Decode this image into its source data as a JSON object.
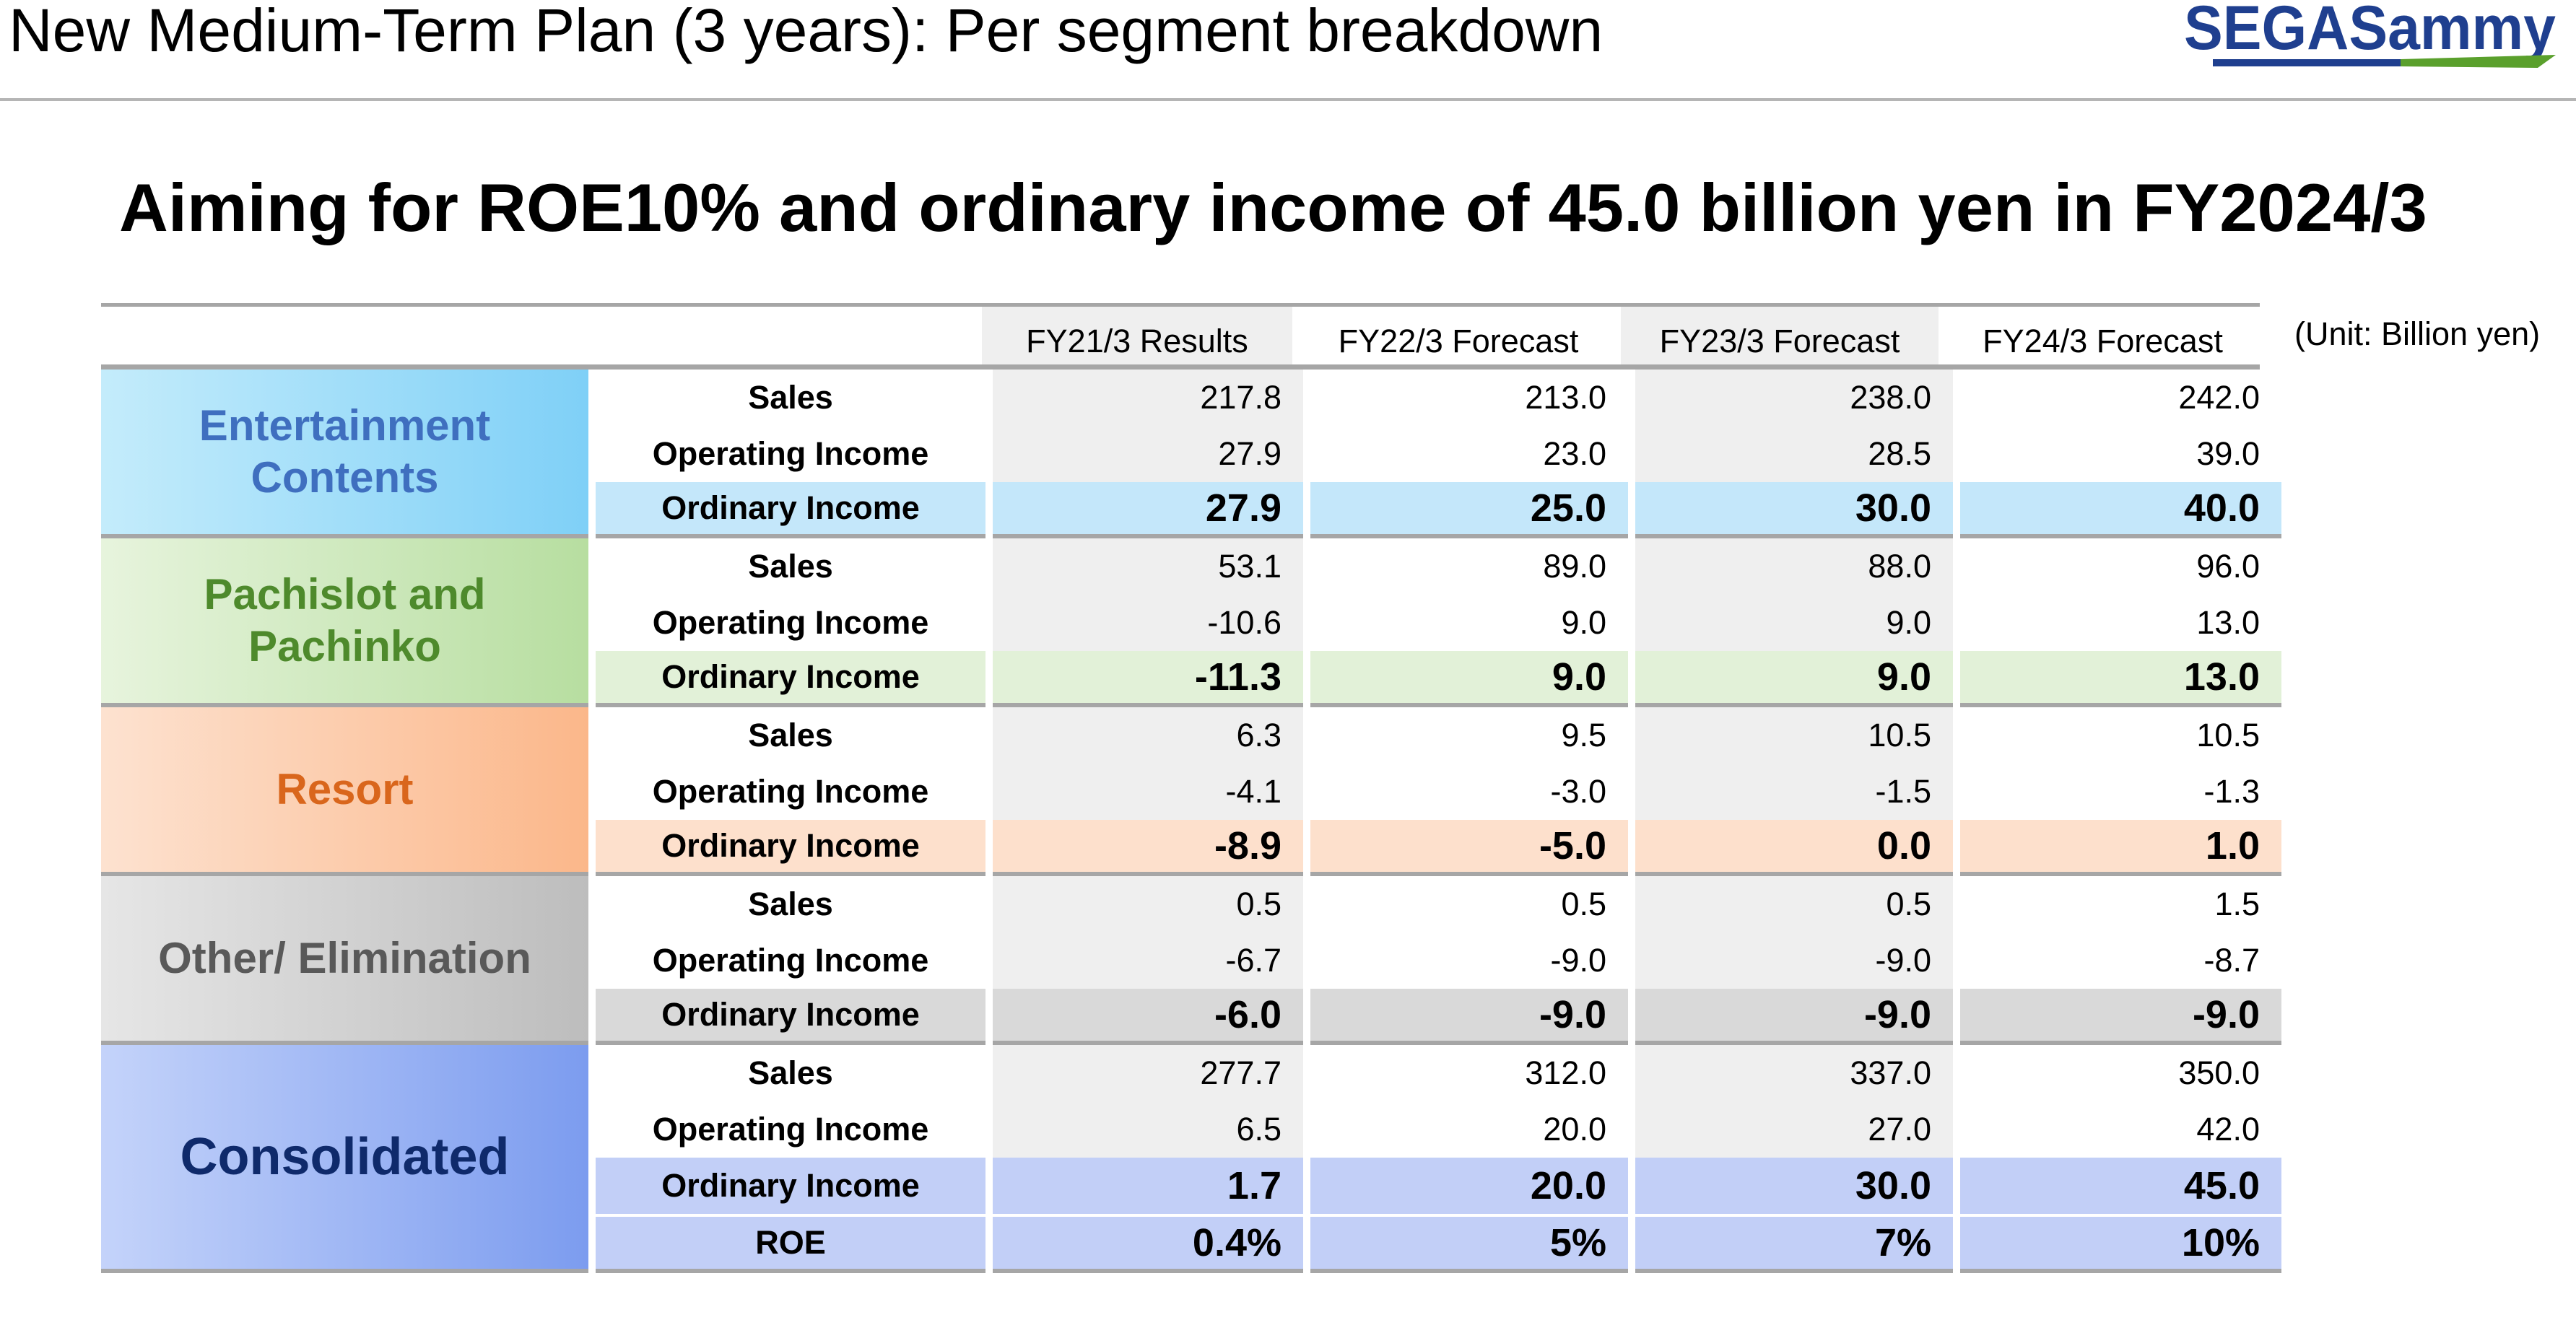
{
  "header": {
    "title": "New Medium-Term Plan (3 years): Per segment breakdown",
    "logo_text": "SEGASammy",
    "logo_color_blue": "#1f3f8f",
    "logo_color_green": "#5aa02c"
  },
  "headline": "Aiming for ROE10% and ordinary income of 45.0 billion yen in FY2024/3",
  "unit_note": "(Unit: Billion yen)",
  "table": {
    "columns": [
      "FY21/3 Results",
      "FY22/3 Forecast",
      "FY23/3 Forecast",
      "FY24/3 Forecast"
    ],
    "segments": [
      {
        "name_line1": "Entertainment",
        "name_line2": "Contents",
        "color": "#3f6fbf",
        "gradient": [
          "#c4ecfb",
          "#7fd0f7"
        ],
        "highlight": "#c4e7fa",
        "rows": [
          {
            "label": "Sales",
            "values": [
              "217.8",
              "213.0",
              "238.0",
              "242.0"
            ]
          },
          {
            "label": "Operating Income",
            "values": [
              "27.9",
              "23.0",
              "28.5",
              "39.0"
            ]
          },
          {
            "label": "Ordinary Income",
            "values": [
              "27.9",
              "25.0",
              "30.0",
              "40.0"
            ]
          }
        ]
      },
      {
        "name_line1": "Pachislot and",
        "name_line2": "Pachinko",
        "color": "#4e8a2c",
        "gradient": [
          "#e7f4dd",
          "#b7dea0"
        ],
        "highlight": "#e2f1d8",
        "rows": [
          {
            "label": "Sales",
            "values": [
              "53.1",
              "89.0",
              "88.0",
              "96.0"
            ]
          },
          {
            "label": "Operating Income",
            "values": [
              "-10.6",
              "9.0",
              "9.0",
              "13.0"
            ]
          },
          {
            "label": "Ordinary Income",
            "values": [
              "-11.3",
              "9.0",
              "9.0",
              "13.0"
            ]
          }
        ]
      },
      {
        "name_line1": "Resort",
        "name_line2": "",
        "color": "#d9661c",
        "gradient": [
          "#fde2d0",
          "#fbb78a"
        ],
        "highlight": "#fde0cc",
        "rows": [
          {
            "label": "Sales",
            "values": [
              "6.3",
              "9.5",
              "10.5",
              "10.5"
            ]
          },
          {
            "label": "Operating Income",
            "values": [
              "-4.1",
              "-3.0",
              "-1.5",
              "-1.3"
            ]
          },
          {
            "label": "Ordinary Income",
            "values": [
              "-8.9",
              "-5.0",
              "0.0",
              "1.0"
            ]
          }
        ]
      },
      {
        "name_line1": "Other/ Elimination",
        "name_line2": "",
        "color": "#595959",
        "gradient": [
          "#e6e6e6",
          "#bdbdbd"
        ],
        "highlight": "#d9d9d9",
        "rows": [
          {
            "label": "Sales",
            "values": [
              "0.5",
              "0.5",
              "0.5",
              "1.5"
            ]
          },
          {
            "label": "Operating Income",
            "values": [
              "-6.7",
              "-9.0",
              "-9.0",
              "-8.7"
            ]
          },
          {
            "label": "Ordinary Income",
            "values": [
              "-6.0",
              "-9.0",
              "-9.0",
              "-9.0"
            ]
          }
        ]
      },
      {
        "name_line1": "Consolidated",
        "name_line2": "",
        "color": "#0f2a6b",
        "gradient": [
          "#c4d3fa",
          "#7c9cef"
        ],
        "highlight": "#c2cff7",
        "rows": [
          {
            "label": "Sales",
            "values": [
              "277.7",
              "312.0",
              "337.0",
              "350.0"
            ]
          },
          {
            "label": "Operating Income",
            "values": [
              "6.5",
              "20.0",
              "27.0",
              "42.0"
            ]
          },
          {
            "label": "Ordinary Income",
            "values": [
              "1.7",
              "20.0",
              "30.0",
              "45.0"
            ]
          },
          {
            "label": "ROE",
            "values": [
              "0.4%",
              "5%",
              "7%",
              "10%"
            ]
          }
        ]
      }
    ]
  }
}
